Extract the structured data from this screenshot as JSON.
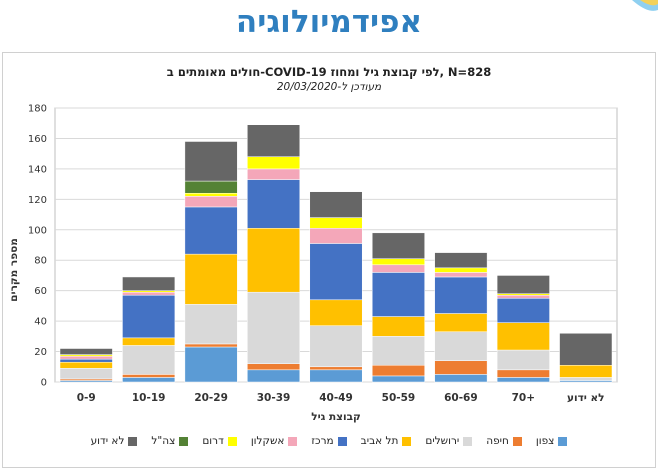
{
  "page": {
    "title": "אפידמיולוגיה"
  },
  "chart_data": {
    "type": "bar",
    "stacked": true,
    "title": "חולים מאומתים  ב-COVID-19 לפי קבוצת גיל ומחוז, N=828",
    "subtitle": "מעודכן ל-20/03/2020",
    "xlabel": "קבוצת גיל",
    "ylabel": "מספר מקרים",
    "ylim": [
      0,
      180
    ],
    "yticks": [
      0,
      20,
      40,
      60,
      80,
      100,
      120,
      140,
      160,
      180
    ],
    "grid": true,
    "legend_position": "bottom",
    "categories": [
      "0-9",
      "10-19",
      "20-29",
      "30-39",
      "40-49",
      "50-59",
      "60-69",
      "70+",
      "לא ידוע"
    ],
    "series": [
      {
        "name": "צפון",
        "color": "#5b9bd5",
        "values": [
          1,
          3,
          23,
          8,
          8,
          4,
          5,
          3,
          1
        ]
      },
      {
        "name": "חיפה",
        "color": "#ed7d31",
        "values": [
          1,
          2,
          2,
          4,
          2,
          7,
          9,
          5,
          0
        ]
      },
      {
        "name": "ירושלים",
        "color": "#d9d9d9",
        "values": [
          7,
          19,
          26,
          47,
          27,
          19,
          19,
          13,
          2
        ]
      },
      {
        "name": "תל אביב",
        "color": "#ffc000",
        "values": [
          4,
          5,
          33,
          42,
          17,
          13,
          12,
          18,
          8
        ]
      },
      {
        "name": "מרכז",
        "color": "#4472c4",
        "values": [
          2,
          28,
          31,
          32,
          37,
          29,
          24,
          16,
          0
        ]
      },
      {
        "name": "אשקלון",
        "color": "#f4a7b9",
        "values": [
          2,
          2,
          7,
          7,
          10,
          5,
          3,
          2,
          0
        ]
      },
      {
        "name": "דרום",
        "color": "#ffff00",
        "values": [
          1,
          1,
          2,
          8,
          7,
          4,
          3,
          1,
          0
        ]
      },
      {
        "name": "צה\"ל",
        "color": "#548235",
        "values": [
          0,
          0,
          8,
          0,
          0,
          0,
          0,
          0,
          0
        ]
      },
      {
        "name": "לא ידוע",
        "color": "#666666",
        "values": [
          4,
          9,
          26,
          21,
          17,
          17,
          10,
          12,
          21
        ]
      }
    ]
  }
}
